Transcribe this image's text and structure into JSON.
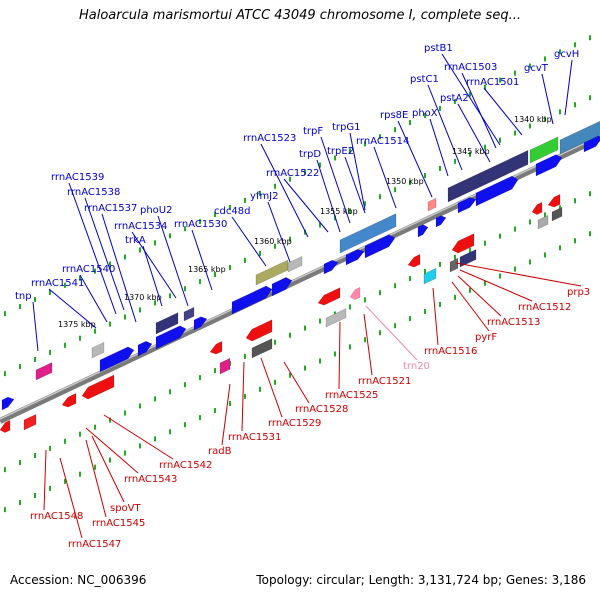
{
  "title": "Haloarcula marismortui ATCC 43049 chromosome I, complete seq...",
  "accession": "Accession: NC_006396",
  "summary": "Topology: circular; Length: 3,131,724 bp; Genes: 3,186",
  "colors": {
    "forward_label": "#0000cc",
    "reverse_label": "#cc0000",
    "trna_label": "#ee88aa",
    "backbone": "#888888",
    "tick": "#22aa22",
    "forward_cds": "#1010ee",
    "reverse_cds": "#ee1010"
  },
  "ruler_labels": [
    "1340 kbp",
    "1345 kbp",
    "1350 kbp",
    "1355 kbp",
    "1360 kbp",
    "1365 kbp",
    "1370 kbp",
    "1375 kbp"
  ],
  "forward_labels": [
    "gcvH",
    "pstB1",
    "gcvT",
    "rrnAC1503",
    "rrnAC1501",
    "pstC1",
    "pstA2",
    "phoX",
    "rps8E",
    "rrnAC1514",
    "trpG1",
    "trpF",
    "trpE2",
    "trpD",
    "rrnAC1523",
    "rrnAC1522",
    "yfmJ2",
    "cdc48d",
    "rrnAC1530",
    "phoU2",
    "rrnAC1534",
    "trkA",
    "rrnAC1537",
    "rrnAC1538",
    "rrnAC1539",
    "rrnAC1540",
    "rrnAC1541",
    "tnp"
  ],
  "reverse_labels": [
    "prp3",
    "rrnAC1512",
    "rrnAC1513",
    "pyrF",
    "rrnAC1516",
    "trn20",
    "rrnAC1521",
    "rrnAC1525",
    "rrnAC1528",
    "rrnAC1529",
    "rrnAC1531",
    "radB",
    "rrnAC1542",
    "rrnAC1543",
    "spoVT",
    "rrnAC1545",
    "rrnAC1548",
    "rrnAC1547"
  ]
}
